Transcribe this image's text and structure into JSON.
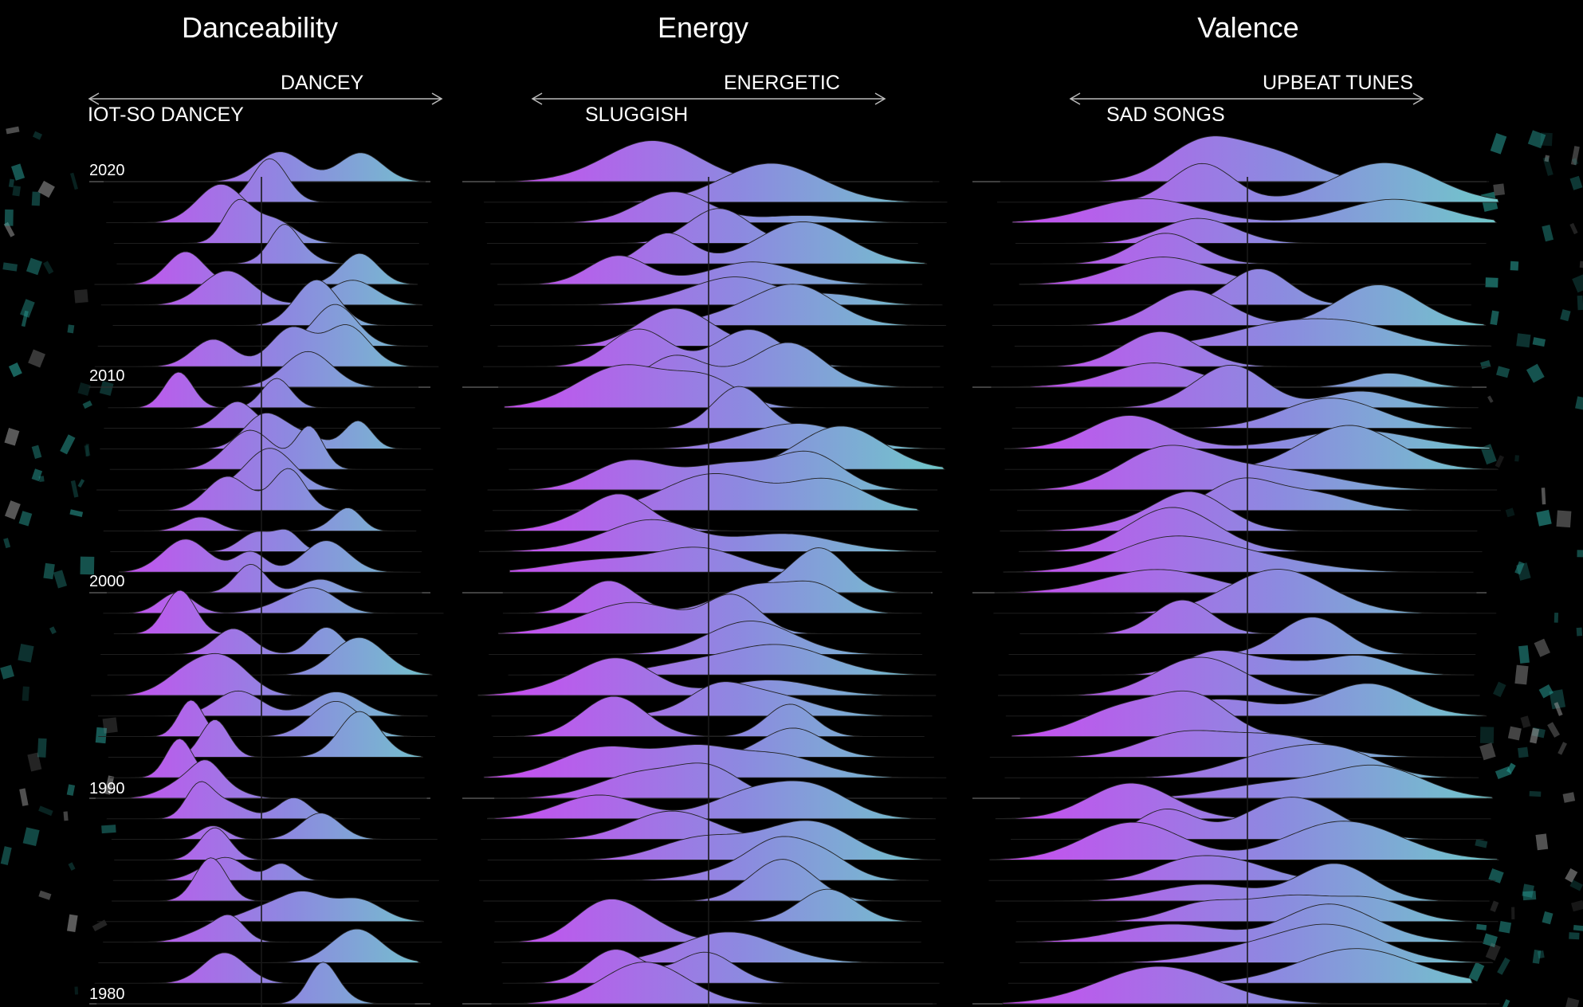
{
  "chart_data": [
    {
      "type": "ridgeline",
      "title": "Danceability",
      "axis_hint_left": "IOT-SO DANCEY",
      "axis_hint_right": "DANCEY",
      "year_labels": [
        "2020",
        "2010",
        "2000",
        "1990",
        "1980"
      ],
      "years_range": [
        1980,
        2020
      ],
      "colors": {
        "low": "#c94cf0",
        "high": "#6fc9c9"
      }
    },
    {
      "type": "ridgeline",
      "title": "Energy",
      "axis_hint_left": "SLUGGISH",
      "axis_hint_right": "ENERGETIC",
      "years_range": [
        1980,
        2020
      ],
      "colors": {
        "low": "#c94cf0",
        "high": "#6fc9c9"
      }
    },
    {
      "type": "ridgeline",
      "title": "Valence",
      "axis_hint_left": "SAD SONGS",
      "axis_hint_right": "UPBEAT TUNES",
      "years_range": [
        1980,
        2020
      ],
      "colors": {
        "low": "#c94cf0",
        "high": "#6fc9c9"
      }
    }
  ]
}
